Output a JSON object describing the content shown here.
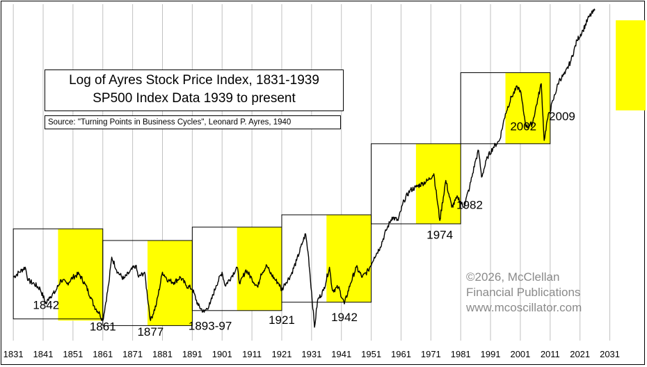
{
  "title_lines": [
    "Log of Ayres Stock Price Index, 1831-1939",
    "SP500 Index Data 1939 to present"
  ],
  "source": "Source: \"Turning Points in Business Cycles\", Leonard P. Ayres, 1940",
  "credit_lines": [
    "©2026, McClellan",
    "Financial Publications",
    "www.mcoscillator.com"
  ],
  "colors": {
    "highlight": "#ffff00",
    "line": "#000000",
    "grid": "#c0c0c0",
    "credit": "#8a8a8a"
  },
  "chart_data": {
    "type": "line",
    "x_ticks": [
      "1831",
      "1841",
      "1851",
      "1861",
      "1871",
      "1881",
      "1891",
      "1901",
      "1911",
      "1921",
      "1931",
      "1941",
      "1951",
      "1961",
      "1971",
      "1981",
      "1991",
      "2001",
      "2011",
      "2021",
      "2031"
    ],
    "xlim": [
      1827,
      2043
    ],
    "scale": "log (relative index units)",
    "ylim": [
      0,
      100
    ],
    "grid": "vertical lines at each decade tick",
    "cycle_boxes": [
      {
        "start": 1831,
        "end": 1861,
        "top": 33.5,
        "bottom": 6.5
      },
      {
        "start": 1861,
        "end": 1891,
        "top": 30.0,
        "bottom": 4.5
      },
      {
        "start": 1891,
        "end": 1921,
        "top": 34.0,
        "bottom": 9.0
      },
      {
        "start": 1921,
        "end": 1951,
        "top": 37.7,
        "bottom": 11.5
      },
      {
        "start": 1951,
        "end": 1981,
        "top": 59.0,
        "bottom": 35.0
      },
      {
        "start": 1981,
        "end": 2011,
        "top": 80.3,
        "bottom": 59.0
      }
    ],
    "highlights": [
      {
        "start": 1846,
        "end": 1861,
        "top": 33.5,
        "bottom": 6.0
      },
      {
        "start": 1876,
        "end": 1891,
        "top": 30.0,
        "bottom": 4.5
      },
      {
        "start": 1906,
        "end": 1921,
        "top": 34.0,
        "bottom": 9.0
      },
      {
        "start": 1936,
        "end": 1951,
        "top": 37.7,
        "bottom": 11.5
      },
      {
        "start": 1966,
        "end": 1981,
        "top": 59.0,
        "bottom": 35.0
      },
      {
        "start": 1996,
        "end": 2011,
        "top": 80.3,
        "bottom": 59.0
      },
      {
        "start": 2033,
        "end": 2048,
        "top": 96.0,
        "bottom": 69.0
      }
    ],
    "annotations": [
      {
        "text": "1842",
        "x": 1842,
        "y": 9.5
      },
      {
        "text": "1861",
        "x": 1861,
        "y": 3.0
      },
      {
        "text": "1877",
        "x": 1877,
        "y": 1.5
      },
      {
        "text": "1893-97",
        "x": 1897,
        "y": 3.2
      },
      {
        "text": "1921",
        "x": 1921,
        "y": 5.0
      },
      {
        "text": "1942",
        "x": 1942,
        "y": 5.8
      },
      {
        "text": "1974",
        "x": 1974,
        "y": 30.5
      },
      {
        "text": "1982",
        "x": 1984,
        "y": 39.5
      },
      {
        "text": "2002",
        "x": 2002,
        "y": 63.0
      },
      {
        "text": "2009",
        "x": 2015,
        "y": 66.0
      }
    ],
    "series": [
      {
        "x": [
          1831,
          1833,
          1835,
          1836,
          1838,
          1840,
          1842,
          1843,
          1845,
          1847,
          1849,
          1851,
          1853,
          1855,
          1857,
          1858,
          1860,
          1861,
          1863,
          1864,
          1866,
          1868,
          1870,
          1872,
          1873,
          1875,
          1877,
          1879,
          1881,
          1883,
          1885,
          1887,
          1889,
          1891,
          1893,
          1895,
          1897,
          1899,
          1901,
          1902,
          1904,
          1906,
          1907,
          1909,
          1911,
          1913,
          1914,
          1916,
          1917,
          1919,
          1920,
          1921,
          1922,
          1924,
          1926,
          1928,
          1929,
          1930,
          1932,
          1933,
          1935,
          1937,
          1938,
          1940,
          1942,
          1944,
          1946,
          1948,
          1950,
          1952,
          1954,
          1956,
          1958,
          1960,
          1962,
          1964,
          1966,
          1968,
          1970,
          1972,
          1974,
          1976,
          1978,
          1980,
          1982,
          1984,
          1986,
          1987,
          1988,
          1990,
          1992,
          1994,
          1996,
          1998,
          2000,
          2001,
          2002,
          2003,
          2005,
          2007,
          2008,
          2009,
          2010,
          2012,
          2014,
          2016,
          2018,
          2020,
          2022,
          2024,
          2026
        ],
        "y": [
          19,
          20.5,
          22,
          18,
          17,
          15.5,
          11,
          13,
          14.5,
          18.2,
          17,
          19,
          20,
          17,
          13,
          10.5,
          8,
          6,
          17,
          25,
          20.5,
          18.5,
          20.5,
          22.5,
          19,
          20.5,
          6,
          11,
          20.5,
          18,
          17.5,
          19,
          16.5,
          15.5,
          10.5,
          8.5,
          11,
          16.5,
          20.5,
          16.5,
          19,
          22,
          17,
          21.2,
          18.5,
          16,
          20,
          22.5,
          20.5,
          18,
          17.2,
          15,
          17,
          19.5,
          24,
          29.5,
          32,
          25,
          4,
          12,
          15,
          22,
          15,
          16,
          11,
          17,
          22,
          19,
          21,
          25,
          28,
          33,
          37,
          36,
          42,
          45,
          46,
          47,
          48,
          50,
          36,
          48,
          40,
          43,
          40,
          46,
          54,
          57,
          49,
          55,
          58,
          60,
          68,
          73,
          76,
          75,
          69,
          64,
          65,
          73,
          77,
          60,
          66,
          72,
          78,
          80,
          84,
          90,
          93,
          97,
          99
        ]
      }
    ]
  }
}
